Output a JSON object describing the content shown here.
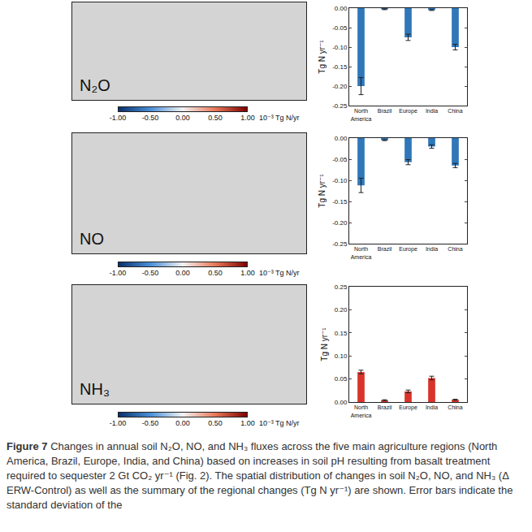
{
  "chart_data": [
    {
      "type": "bar",
      "categories": [
        "North America",
        "Brazil",
        "Europe",
        "India",
        "China"
      ],
      "values": [
        -0.2,
        -0.003,
        -0.075,
        -0.005,
        -0.1
      ],
      "error": [
        0.022,
        0.001,
        0.008,
        0.001,
        0.007
      ],
      "color": "#2f77b9",
      "ylabel": "Tg N yr⁻¹",
      "ylim": [
        -0.25,
        0
      ],
      "yticks": [
        {
          "value": 0,
          "label": "0.00"
        },
        -0.05,
        {
          "value": -0.1,
          "label": "-0.10"
        },
        -0.15,
        {
          "value": -0.2,
          "label": "-0.20"
        },
        -0.25
      ]
    },
    {
      "type": "bar",
      "categories": [
        "North America",
        "Brazil",
        "Europe",
        "India",
        "China"
      ],
      "values": [
        -0.112,
        -0.005,
        -0.057,
        -0.02,
        -0.065
      ],
      "error": [
        0.017,
        0.001,
        0.006,
        0.004,
        0.005
      ],
      "color": "#2f77b9",
      "ylabel": "Tg N yr⁻¹",
      "ylim": [
        -0.25,
        0
      ],
      "yticks": [
        {
          "value": 0,
          "label": "0.00"
        },
        -0.05,
        {
          "value": -0.1,
          "label": "-0.10"
        },
        -0.15,
        {
          "value": -0.2,
          "label": "-0.20"
        },
        -0.25
      ]
    },
    {
      "type": "bar",
      "categories": [
        "North America",
        "Brazil",
        "Europe",
        "India",
        "China"
      ],
      "values": [
        0.065,
        0.004,
        0.023,
        0.052,
        0.005
      ],
      "error": [
        0.004,
        0.001,
        0.003,
        0.004,
        0.001
      ],
      "color": "#d9342b",
      "ylabel": "Tg N yr⁻¹",
      "ylim": [
        0,
        0.25
      ],
      "yticks": [
        {
          "value": 0,
          "label": "0.00"
        },
        0.05,
        {
          "value": 0.1,
          "label": "0.10"
        },
        0.15,
        {
          "value": 0.2,
          "label": "0.20"
        },
        0.25
      ]
    }
  ],
  "maps": [
    {
      "label": "N₂O",
      "colorbar": {
        "range": [
          -1,
          1
        ],
        "ticks": [
          {
            "value": -1,
            "label": "-1.00"
          },
          {
            "value": -0.5,
            "label": "-0.50"
          },
          {
            "value": 0,
            "label": "0.00"
          },
          {
            "value": 0.5,
            "label": "0.50"
          },
          {
            "value": 1,
            "label": "1.00"
          }
        ],
        "unit": "10⁻³ Tg N/yr"
      }
    },
    {
      "label": "NO",
      "colorbar": {
        "range": [
          -1,
          1
        ],
        "ticks": [
          {
            "value": -1,
            "label": "-1.00"
          },
          {
            "value": -0.5,
            "label": "-0.50"
          },
          {
            "value": 0,
            "label": "0.00"
          },
          {
            "value": 0.5,
            "label": "0.50"
          },
          {
            "value": 1,
            "label": "1.00"
          }
        ],
        "unit": "10⁻³ Tg N/yr"
      }
    },
    {
      "label": "NH₃",
      "colorbar": {
        "range": [
          -1,
          1
        ],
        "ticks": [
          {
            "value": -1,
            "label": "-1.00"
          },
          {
            "value": -0.5,
            "label": "-0.50"
          },
          {
            "value": 0,
            "label": "0.00"
          },
          {
            "value": 0.5,
            "label": "0.50"
          },
          {
            "value": 1,
            "label": "1.00"
          }
        ],
        "unit": "10⁻³ Tg N/yr"
      }
    }
  ],
  "caption": {
    "label": "Figure 7",
    "text": "Changes in annual soil N₂O, NO, and NH₃ fluxes across the five main agriculture regions (North America, Brazil, Europe, India, and China) based on increases in soil pH resulting from basalt treatment required to sequester 2 Gt CO₂ yr⁻¹ (Fig. 2). The spatial distribution of changes in soil N₂O, NO, and NH₃ (Δ ERW-Control) as well as the summary of the regional changes (Tg N yr⁻¹) are shown. Error bars indicate the standard deviation of the"
  }
}
